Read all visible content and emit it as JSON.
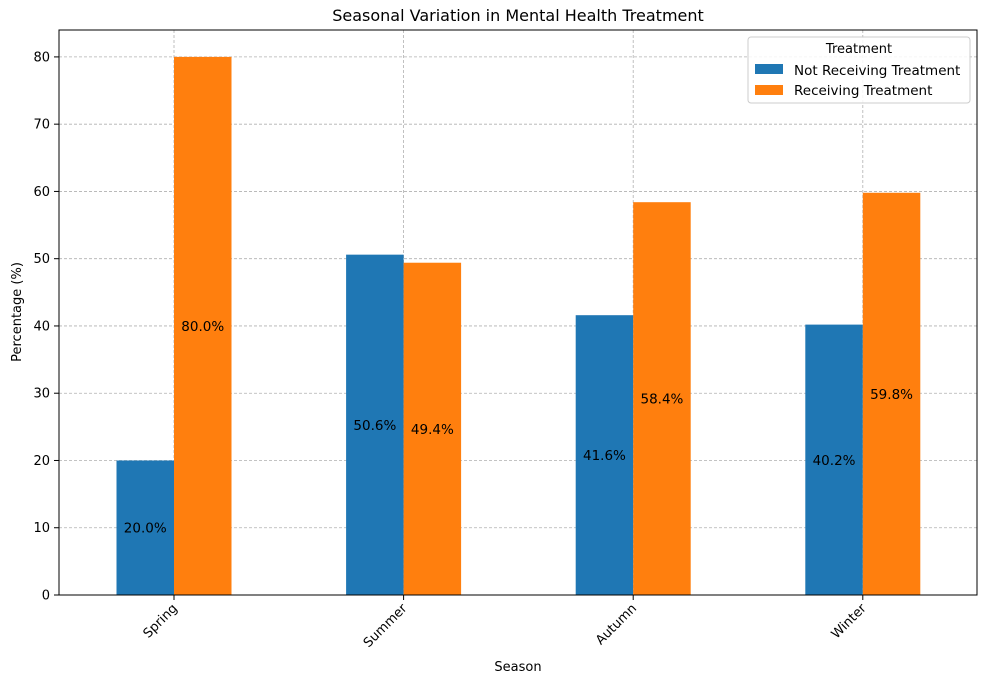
{
  "chart_data": {
    "type": "bar",
    "title": "Seasonal Variation in Mental Health Treatment",
    "xlabel": "Season",
    "ylabel": "Percentage (%)",
    "categories": [
      "Spring",
      "Summer",
      "Autumn",
      "Winter"
    ],
    "ylim": [
      0,
      84
    ],
    "yticks": [
      0,
      10,
      20,
      30,
      40,
      50,
      60,
      70,
      80
    ],
    "grid": true,
    "legend": {
      "title": "Treatment",
      "placement": "top-right"
    },
    "series": [
      {
        "name": "Not Receiving Treatment",
        "color": "#1f77b4",
        "values": [
          20.0,
          50.6,
          41.6,
          40.2
        ],
        "labels": [
          "20.0%",
          "50.6%",
          "41.6%",
          "40.2%"
        ]
      },
      {
        "name": "Receiving Treatment",
        "color": "#ff7f0e",
        "values": [
          80.0,
          49.4,
          58.4,
          59.8
        ],
        "labels": [
          "80.0%",
          "49.4%",
          "58.4%",
          "59.8%"
        ]
      }
    ]
  }
}
